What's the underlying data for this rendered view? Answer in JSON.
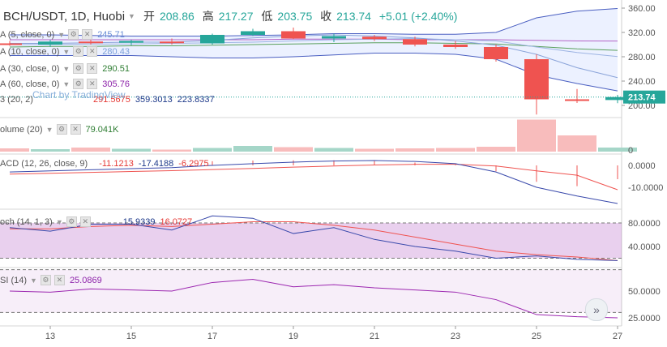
{
  "header": {
    "symbol": "BCH/USDT, 1D, Huobi",
    "open_label": "开",
    "open": "208.86",
    "high_label": "高",
    "high": "217.27",
    "low_label": "低",
    "low": "203.75",
    "close_label": "收",
    "close": "213.74",
    "change": "+5.01 (+2.40%)"
  },
  "legends": {
    "ma5": {
      "label": "A (5, close, 0)",
      "value": "245.71",
      "color": "#6b8fd6"
    },
    "ma10": {
      "label": "A (10, close, 0)",
      "value": "280.43",
      "color": "#7b9fd9"
    },
    "ma30": {
      "label": "A (30, close, 0)",
      "value": "290.51",
      "color": "#2e7d32"
    },
    "ma60": {
      "label": "A (60, close, 0)",
      "value": "305.76",
      "color": "#8e24aa"
    },
    "bb": {
      "label": "3 (20, 2)",
      "v1": "291.5675",
      "v2": "359.3013",
      "v3": "223.8337"
    },
    "volume": {
      "label": "olume (20)",
      "value": "79.041K"
    },
    "macd": {
      "label": "ACD (12, 26, close, 9)",
      "v1": "-11.1213",
      "v2": "-17.4188",
      "v3": "-6.2975"
    },
    "stoch": {
      "label": "och (14, 1, 3)",
      "v1": "15.9339",
      "v2": "16.0727"
    },
    "rsi": {
      "label": "SI (14)",
      "value": "25.0869"
    }
  },
  "watermark": "Chart by TradingView",
  "last_price_tag": "213.74",
  "chart_data": {
    "type": "candlestick",
    "x_ticks": [
      "13",
      "15",
      "17",
      "19",
      "21",
      "23",
      "25",
      "27"
    ],
    "price_axis": [
      "360.00",
      "320.00",
      "280.00",
      "240.00",
      "200.00"
    ],
    "volume_axis": [
      "0"
    ],
    "macd_axis": [
      "0.0000",
      "-10.0000"
    ],
    "stoch_axis": [
      "80.0000",
      "40.0000"
    ],
    "rsi_axis": [
      "50.0000",
      "25.0000"
    ],
    "days": [
      12,
      13,
      14,
      15,
      16,
      17,
      18,
      19,
      20,
      21,
      22,
      23,
      24,
      25,
      26,
      27
    ],
    "ohlc": [
      [
        302,
        306,
        298,
        300
      ],
      [
        300,
        308,
        296,
        305
      ],
      [
        305,
        309,
        300,
        304
      ],
      [
        303,
        308,
        299,
        306
      ],
      [
        305,
        310,
        300,
        303
      ],
      [
        302,
        318,
        300,
        316
      ],
      [
        316,
        326,
        314,
        322
      ],
      [
        322,
        328,
        309,
        310
      ],
      [
        310,
        318,
        304,
        314
      ],
      [
        313,
        316,
        306,
        309
      ],
      [
        309,
        313,
        297,
        300
      ],
      [
        300,
        306,
        293,
        296
      ],
      [
        296,
        300,
        272,
        276
      ],
      [
        276,
        284,
        185,
        210
      ],
      [
        210,
        227,
        204,
        209
      ],
      [
        208.86,
        217.27,
        203.75,
        213.74
      ]
    ],
    "bb_upper": [
      316,
      316,
      315,
      314,
      314,
      314,
      315,
      316,
      318,
      318,
      317,
      317,
      320,
      344,
      355,
      359.3
    ],
    "bb_lower": [
      282,
      282,
      282,
      282,
      280,
      278,
      278,
      280,
      283,
      286,
      286,
      284,
      276,
      250,
      236,
      223.8
    ],
    "ma5": [
      302,
      302,
      303,
      304,
      304,
      307,
      311,
      314,
      316,
      314,
      311,
      306,
      299,
      284,
      262,
      245.7
    ],
    "ma10": [
      300,
      300,
      301,
      301,
      302,
      303,
      304,
      306,
      308,
      309,
      310,
      308,
      306,
      296,
      287,
      280.4
    ],
    "ma30": [
      296,
      297,
      297,
      298,
      298,
      299,
      300,
      301,
      302,
      303,
      303,
      302,
      301,
      297,
      293,
      290.5
    ],
    "ma60": [
      308,
      308,
      308,
      308,
      308,
      308,
      308,
      309,
      309,
      309,
      308,
      308,
      308,
      307,
      306,
      305.8
    ],
    "volume": [
      8,
      6,
      10,
      7,
      5,
      9,
      14,
      11,
      9,
      7,
      8,
      9,
      12,
      79,
      40,
      10
    ],
    "macd_line": [
      -3,
      -2.5,
      -2,
      -1.5,
      -1,
      0,
      0.8,
      1.5,
      2,
      2.2,
      1.8,
      0.8,
      -3,
      -10,
      -14,
      -17.4
    ],
    "macd_signal": [
      -4,
      -3.6,
      -3.2,
      -2.8,
      -2.4,
      -1.9,
      -1.4,
      -0.8,
      -0.3,
      0.2,
      0.5,
      0.5,
      -0.3,
      -2.5,
      -4.5,
      -11.1
    ],
    "macd_hist": [
      0,
      0,
      0,
      0,
      0,
      1.9,
      2.2,
      2.3,
      2.3,
      2,
      1.3,
      0.3,
      -2.7,
      -7.5,
      -9.5,
      -6.3
    ],
    "stoch_k": [
      72,
      66,
      78,
      78,
      68,
      92,
      88,
      62,
      72,
      52,
      40,
      32,
      20,
      24,
      18,
      16
    ],
    "stoch_d": [
      70,
      70,
      74,
      76,
      74,
      78,
      82,
      82,
      76,
      68,
      56,
      44,
      32,
      26,
      22,
      16
    ],
    "rsi": [
      50,
      49,
      52,
      51,
      50,
      58,
      61,
      54,
      56,
      53,
      51,
      49,
      42,
      28,
      26,
      25
    ]
  }
}
